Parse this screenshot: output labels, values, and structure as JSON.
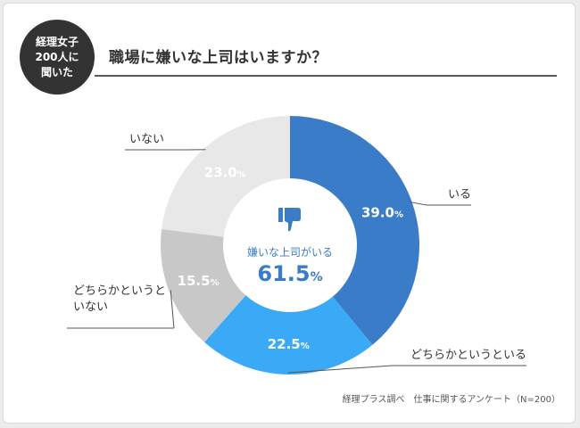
{
  "badge": {
    "lines": [
      "経理女子",
      "200人に",
      "聞いた"
    ]
  },
  "title": "職場に嫌いな上司はいますか？",
  "center": {
    "label": "嫌いな上司がいる",
    "value": "61.5",
    "unit": "%",
    "icon": "thumbs-down-icon"
  },
  "source": "経理プラス調べ　仕事に関するアンケート（N=200）",
  "colors": {
    "accent": "#3a7cc7",
    "text": "#333333"
  },
  "chart_data": {
    "type": "pie",
    "title": "職場に嫌いな上司はいますか？",
    "unit": "%",
    "slices": [
      {
        "label": "いる",
        "value": 39.0,
        "display": "39.0",
        "color": "#3a7cc7"
      },
      {
        "label": "どちらかというといる",
        "value": 22.5,
        "display": "22.5",
        "color": "#3aaaf7"
      },
      {
        "label": "どちらかというといない",
        "value": 15.5,
        "display": "15.5",
        "color": "#c8c8c8"
      },
      {
        "label": "いない",
        "value": 23.0,
        "display": "23.0",
        "color": "#e8e8e8"
      }
    ]
  }
}
